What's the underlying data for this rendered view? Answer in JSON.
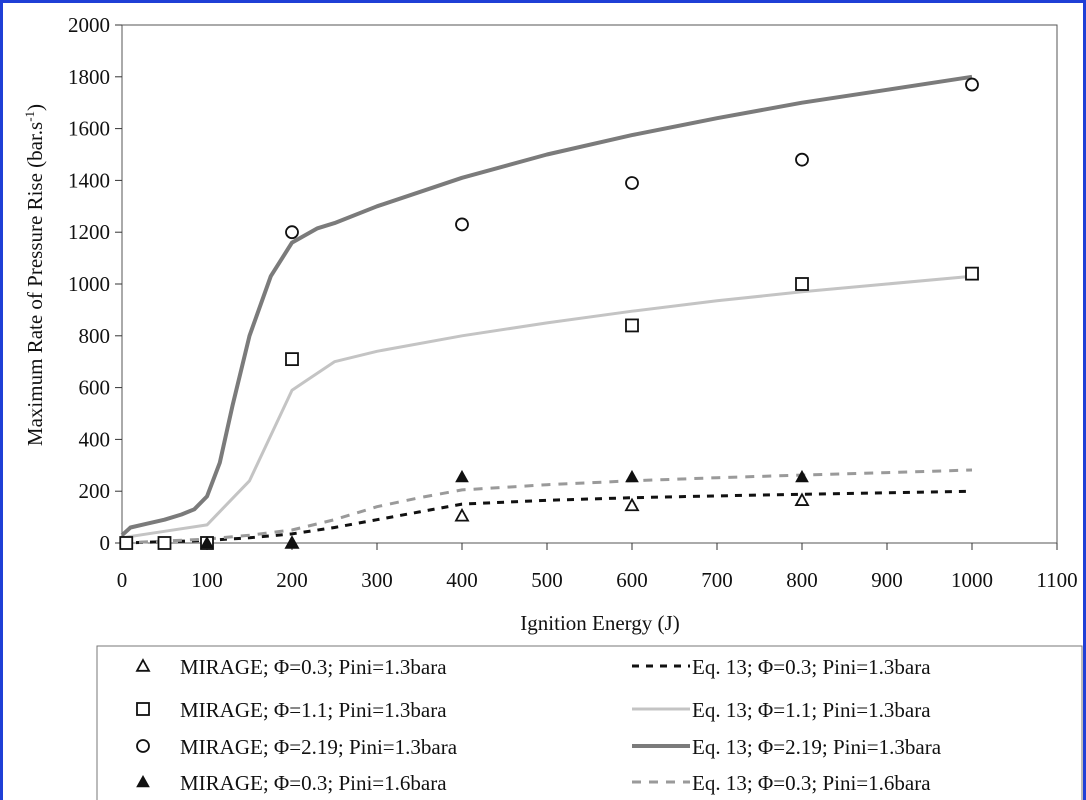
{
  "chart_data": {
    "type": "scatter",
    "xlabel": "Ignition Energy (J)",
    "ylabel": "Maximum Rate of Pressure Rise (bar.s",
    "ylabel_sup": "-1",
    "ylabel_tail": ")",
    "xlim": [
      0,
      1100
    ],
    "ylim": [
      0,
      2000
    ],
    "xticks": [
      0,
      100,
      200,
      300,
      400,
      500,
      600,
      700,
      800,
      900,
      1000,
      1100
    ],
    "yticks": [
      0,
      200,
      400,
      600,
      800,
      1000,
      1200,
      1400,
      1600,
      1800,
      2000
    ],
    "grid": false,
    "legend_position": "bottom",
    "series": [
      {
        "name": "MIRAGE; Φ=0.3; Pini=1.3bara",
        "kind": "marker",
        "marker": "triangle-open",
        "color": "#111111",
        "x": [
          200,
          400,
          600,
          800
        ],
        "y": [
          0,
          105,
          145,
          165
        ]
      },
      {
        "name": "MIRAGE; Φ=1.1; Pini=1.3bara",
        "kind": "marker",
        "marker": "square-open",
        "color": "#111111",
        "x": [
          5,
          50,
          100,
          200,
          600,
          800,
          1000
        ],
        "y": [
          0,
          0,
          0,
          710,
          840,
          1000,
          1040
        ]
      },
      {
        "name": "MIRAGE; Φ=2.19; Pini=1.3bara",
        "kind": "marker",
        "marker": "circle-open",
        "color": "#111111",
        "x": [
          200,
          400,
          600,
          800,
          1000
        ],
        "y": [
          1200,
          1230,
          1390,
          1480,
          1770
        ]
      },
      {
        "name": "MIRAGE; Φ=0.3; Pini=1.6bara",
        "kind": "marker",
        "marker": "triangle-filled",
        "color": "#111111",
        "x": [
          100,
          200,
          400,
          600,
          800
        ],
        "y": [
          0,
          0,
          255,
          255,
          255
        ]
      },
      {
        "name": "Eq. 13; Φ=0.3; Pini=1.3bara",
        "kind": "line",
        "style": "dotted",
        "color": "#111111",
        "width": 3,
        "x": [
          0,
          100,
          150,
          200,
          250,
          300,
          350,
          400,
          500,
          600,
          700,
          800,
          900,
          1000
        ],
        "y": [
          0,
          10,
          20,
          35,
          60,
          90,
          120,
          150,
          165,
          175,
          182,
          188,
          194,
          200
        ]
      },
      {
        "name": "Eq. 13; Φ=1.1; Pini=1.3bara",
        "kind": "line",
        "style": "solid",
        "color": "#c4c4c4",
        "width": 3,
        "x": [
          0,
          50,
          100,
          150,
          200,
          250,
          300,
          400,
          500,
          600,
          700,
          800,
          900,
          1000
        ],
        "y": [
          20,
          45,
          70,
          240,
          590,
          700,
          740,
          800,
          850,
          895,
          935,
          970,
          1000,
          1030
        ]
      },
      {
        "name": "Eq. 13; Φ=2.19; Pini=1.3bara",
        "kind": "line",
        "style": "solid",
        "color": "#7b7b7b",
        "width": 4,
        "x": [
          0,
          10,
          30,
          50,
          70,
          85,
          100,
          115,
          130,
          150,
          175,
          200,
          230,
          250,
          300,
          400,
          500,
          600,
          700,
          800,
          900,
          1000
        ],
        "y": [
          30,
          60,
          75,
          90,
          110,
          130,
          180,
          310,
          530,
          800,
          1030,
          1160,
          1215,
          1235,
          1300,
          1410,
          1500,
          1575,
          1640,
          1700,
          1750,
          1800
        ]
      },
      {
        "name": "Eq. 13; Φ=0.3; Pini=1.6bara",
        "kind": "line",
        "style": "dashed",
        "color": "#9a9a9a",
        "width": 3,
        "x": [
          0,
          100,
          150,
          200,
          250,
          300,
          350,
          400,
          500,
          600,
          700,
          800,
          900,
          1000
        ],
        "y": [
          0,
          15,
          30,
          50,
          90,
          140,
          175,
          205,
          225,
          240,
          252,
          262,
          272,
          282
        ]
      }
    ],
    "legend_left": [
      0,
      1,
      2,
      3
    ],
    "legend_right": [
      4,
      5,
      6,
      7
    ]
  }
}
